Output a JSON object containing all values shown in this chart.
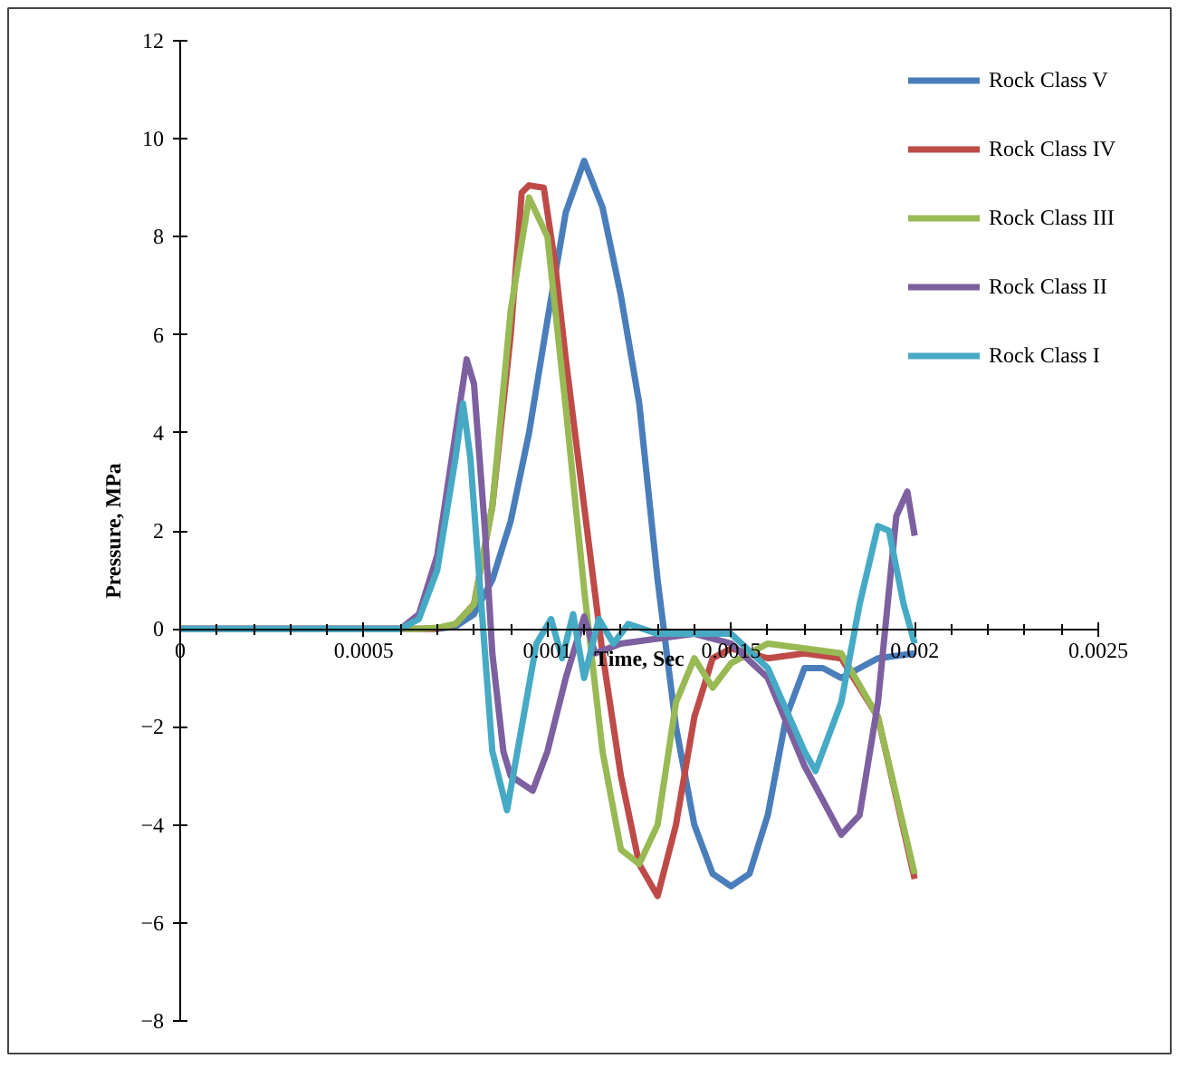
{
  "chart_data": {
    "type": "line",
    "xlabel": "Time, Sec",
    "ylabel": "Pressure, MPa",
    "xlim": [
      0,
      0.0025
    ],
    "ylim": [
      -8,
      12
    ],
    "xticks": [
      {
        "value": 0,
        "label": "0"
      },
      {
        "value": 0.0005,
        "label": "0.0005"
      },
      {
        "value": 0.001,
        "label": "0.001"
      },
      {
        "value": 0.0015,
        "label": "0.0015"
      },
      {
        "value": 0.002,
        "label": "0.002"
      },
      {
        "value": 0.0025,
        "label": "0.0025"
      }
    ],
    "yticks": [
      -8,
      -6,
      -4,
      -2,
      0,
      2,
      4,
      6,
      8,
      10,
      12
    ],
    "grid": false,
    "legend": "top right",
    "marker": "none",
    "line_style": "solid",
    "series": [
      {
        "name": "Rock Class V",
        "color": "#4a7ebb",
        "x": [
          0,
          0.0007,
          0.00075,
          0.0008,
          0.00085,
          0.0009,
          0.00095,
          0.001,
          0.00105,
          0.0011,
          0.00115,
          0.0012,
          0.00125,
          0.0013,
          0.00135,
          0.0014,
          0.00145,
          0.0015,
          0.00155,
          0.0016,
          0.00165,
          0.0017,
          0.00175,
          0.0018,
          0.00185,
          0.0019,
          0.002
        ],
        "values": [
          0,
          0,
          0.05,
          0.3,
          1.0,
          2.2,
          4.0,
          6.3,
          8.5,
          9.55,
          8.6,
          6.8,
          4.6,
          1.0,
          -2.0,
          -4.0,
          -5.0,
          -5.25,
          -5.0,
          -3.8,
          -1.8,
          -0.8,
          -0.8,
          -1.0,
          -0.8,
          -0.6,
          -0.5
        ]
      },
      {
        "name": "Rock Class IV",
        "color": "#be4b48",
        "x": [
          0,
          0.0007,
          0.00075,
          0.0008,
          0.00085,
          0.0009,
          0.00093,
          0.00095,
          0.00099,
          0.00102,
          0.00105,
          0.0011,
          0.00115,
          0.0012,
          0.00125,
          0.0013,
          0.00135,
          0.0014,
          0.00145,
          0.0015,
          0.0016,
          0.0017,
          0.0018,
          0.0019,
          0.002
        ],
        "values": [
          0,
          0,
          0.1,
          0.5,
          2.5,
          6.0,
          8.9,
          9.05,
          9.0,
          7.5,
          5.5,
          2.5,
          -0.5,
          -3.0,
          -4.8,
          -5.45,
          -4.0,
          -1.8,
          -0.6,
          -0.4,
          -0.6,
          -0.5,
          -0.6,
          -1.8,
          -5.1
        ]
      },
      {
        "name": "Rock Class III",
        "color": "#98b954",
        "x": [
          0,
          0.00065,
          0.0007,
          0.00075,
          0.0008,
          0.00085,
          0.0009,
          0.00095,
          0.001,
          0.00105,
          0.0011,
          0.00115,
          0.0012,
          0.00125,
          0.0013,
          0.00135,
          0.0014,
          0.00145,
          0.0015,
          0.0016,
          0.0017,
          0.0018,
          0.0019,
          0.002
        ],
        "values": [
          0,
          0,
          0.02,
          0.1,
          0.5,
          2.5,
          6.5,
          8.8,
          8.0,
          4.5,
          0.8,
          -2.5,
          -4.5,
          -4.8,
          -4.0,
          -1.5,
          -0.6,
          -1.2,
          -0.7,
          -0.3,
          -0.4,
          -0.5,
          -1.8,
          -5.0
        ]
      },
      {
        "name": "Rock Class II",
        "color": "#7d60a0",
        "x": [
          0,
          0.0006,
          0.00065,
          0.0007,
          0.00075,
          0.00078,
          0.0008,
          0.00083,
          0.00085,
          0.00088,
          0.0009,
          0.00096,
          0.001,
          0.00105,
          0.0011,
          0.00113,
          0.0012,
          0.0013,
          0.0014,
          0.0015,
          0.0016,
          0.0017,
          0.0018,
          0.00185,
          0.0019,
          0.00195,
          0.00198,
          0.002
        ],
        "values": [
          0,
          0,
          0.3,
          1.5,
          4.0,
          5.5,
          5.0,
          2.0,
          -0.5,
          -2.5,
          -3.0,
          -3.3,
          -2.5,
          -1.0,
          0.25,
          -0.5,
          -0.3,
          -0.2,
          -0.1,
          -0.3,
          -1.0,
          -2.8,
          -4.2,
          -3.8,
          -1.5,
          2.3,
          2.8,
          1.9
        ]
      },
      {
        "name": "Rock Class I",
        "color": "#46aac5",
        "x": [
          0,
          0.0006,
          0.00065,
          0.0007,
          0.00075,
          0.00077,
          0.00079,
          0.00082,
          0.00085,
          0.00089,
          0.00093,
          0.00097,
          0.00101,
          0.00104,
          0.00107,
          0.0011,
          0.00114,
          0.00118,
          0.00122,
          0.0013,
          0.0015,
          0.0016,
          0.0017,
          0.00173,
          0.0018,
          0.00185,
          0.0019,
          0.00193,
          0.00197,
          0.002
        ],
        "values": [
          0,
          0,
          0.2,
          1.2,
          3.5,
          4.6,
          3.5,
          0.5,
          -2.5,
          -3.7,
          -2.0,
          -0.3,
          0.2,
          -0.6,
          0.3,
          -1.0,
          0.2,
          -0.3,
          0.1,
          -0.1,
          -0.1,
          -0.8,
          -2.5,
          -2.9,
          -1.5,
          0.5,
          2.1,
          2.0,
          0.5,
          -0.3
        ]
      }
    ]
  }
}
